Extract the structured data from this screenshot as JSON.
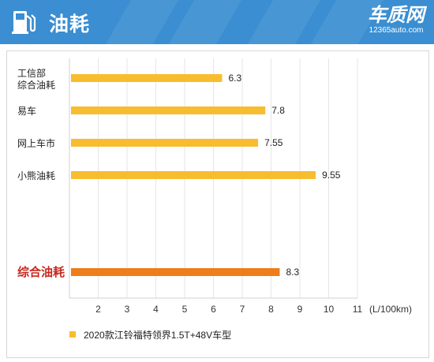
{
  "header": {
    "title": "油耗",
    "icon": "fuel-pump-icon",
    "brand_name": "车质网",
    "brand_url": "12365auto.com",
    "background_color": "#3a8ed1"
  },
  "chart_data": {
    "type": "bar",
    "orientation": "horizontal",
    "title": "",
    "xlabel": "",
    "ylabel": "",
    "unit_label": "(L/100km)",
    "xlim": [
      1,
      11
    ],
    "x_ticks": [
      "2",
      "3",
      "4",
      "5",
      "6",
      "7",
      "8",
      "9",
      "10",
      "11"
    ],
    "grid": true,
    "legend_position": "bottom-left",
    "categories": [
      "工信部\n综合油耗",
      "易车",
      "网上车市",
      "小熊油耗",
      "综合油耗"
    ],
    "series": [
      {
        "name": "2020款江铃福特领界1.5T+48V车型",
        "color": "#f7bd2e",
        "values": [
          6.3,
          7.8,
          7.55,
          9.55,
          8.3
        ],
        "value_labels": [
          "6.3",
          "7.8",
          "7.55",
          "9.55",
          "8.3"
        ]
      }
    ],
    "highlight": {
      "category": "综合油耗",
      "bar_color": "#ee7d1a",
      "label_color": "#c8281e"
    }
  }
}
